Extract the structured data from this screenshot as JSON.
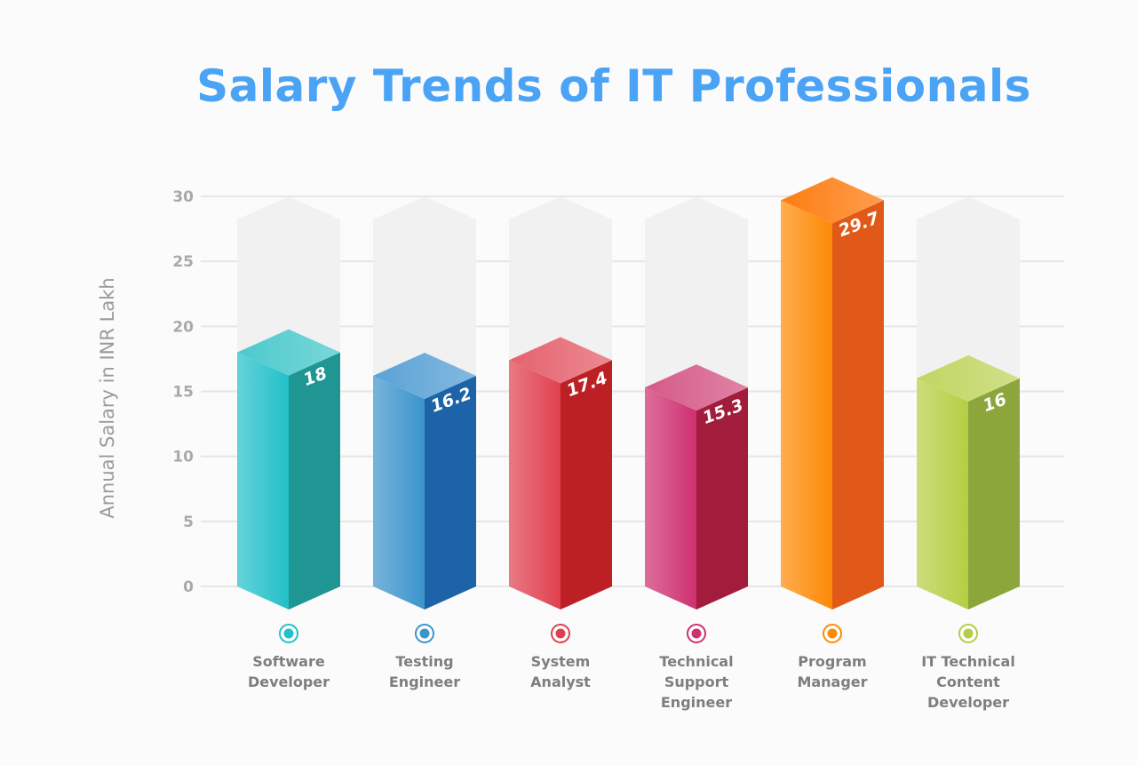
{
  "chart_data": {
    "type": "bar",
    "title": "Salary Trends of IT Professionals",
    "ylabel": "Annual Salary in INR Lakh",
    "xlabel": "",
    "ylim": [
      0,
      30
    ],
    "yticks": [
      0,
      5,
      10,
      15,
      20,
      25,
      30
    ],
    "grid": true,
    "categories": [
      [
        "Software",
        "Developer"
      ],
      [
        "Testing",
        "Engineer"
      ],
      [
        "System",
        "Analyst"
      ],
      [
        "Technical",
        "Support",
        "Engineer"
      ],
      [
        "Program",
        "Manager"
      ],
      [
        "IT Technical",
        "Content",
        "Developer"
      ]
    ],
    "values": [
      18,
      16.2,
      17.4,
      15.3,
      29.7,
      16
    ],
    "value_labels": [
      "18",
      "16.2",
      "17.4",
      "15.3",
      "29.7",
      "16"
    ],
    "colors": [
      {
        "front": "#22c0c8",
        "side": "#1f9594",
        "top": "#4cc9cc"
      },
      {
        "front": "#3b94cc",
        "side": "#1c64a7",
        "top": "#5aa2d6"
      },
      {
        "front": "#e0404e",
        "side": "#bc2024",
        "top": "#e5626d"
      },
      {
        "front": "#cf3070",
        "side": "#a21c3c",
        "top": "#d55a87"
      },
      {
        "front": "#fd8a05",
        "side": "#e15918",
        "top": "#fd7d12"
      },
      {
        "front": "#b4ce44",
        "side": "#8da63b",
        "top": "#c0d561"
      }
    ],
    "placeholder_color": "#f1f1f1"
  }
}
